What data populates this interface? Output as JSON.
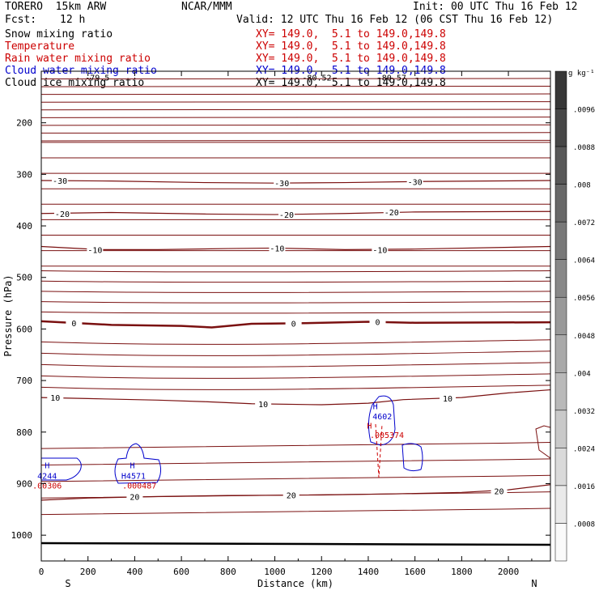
{
  "header": {
    "model": "TORERO  15km ARW",
    "org": "NCAR/MMM",
    "init": "Init: 00 UTC Thu 16 Feb 12",
    "fcst_label": "Fcst:",
    "fcst_value": "12 h",
    "valid": "Valid: 12 UTC Thu 16 Feb 12 (06 CST Thu 16 Feb 12)"
  },
  "fields": [
    {
      "name": "Snow mixing ratio",
      "xy": "XY= 149.0,  5.1 to 149.0,149.8",
      "color": "#000000"
    },
    {
      "name": "Temperature",
      "xy": "XY= 149.0,  5.1 to 149.0,149.8",
      "color": "#cc0000"
    },
    {
      "name": "Rain water mixing ratio",
      "xy": "XY= 149.0,  5.1 to 149.0,149.8",
      "color": "#cc0000"
    },
    {
      "name": "Cloud water mixing ratio",
      "xy": "XY= 149.0,  5.1 to 149.0,149.8",
      "color": "#0000cc"
    },
    {
      "name": "Cloud ice mixing ratio",
      "xy": "XY= 149.0,  5.1 to 149.0,149.8",
      "color": "#000000"
    }
  ],
  "chart_data": {
    "type": "contour",
    "xlabel": "Distance (km)",
    "ylabel": "Pressure (hPa)",
    "xlim": [
      0,
      2180
    ],
    "ylim": [
      1050,
      100
    ],
    "x_ticks": [
      0,
      200,
      400,
      600,
      800,
      1000,
      1200,
      1400,
      1600,
      1800,
      2000
    ],
    "y_ticks": [
      200,
      300,
      400,
      500,
      600,
      700,
      800,
      900,
      1000
    ],
    "x_end_labels": {
      "left": "S",
      "right": "N"
    },
    "temperature_contours": [
      {
        "level": -30,
        "label": "-30",
        "points": [
          [
            0,
            312
          ],
          [
            300,
            313
          ],
          [
            700,
            316
          ],
          [
            1000,
            317
          ],
          [
            1300,
            316
          ],
          [
            1600,
            314
          ],
          [
            2180,
            312
          ]
        ]
      },
      {
        "level": -20,
        "label": "-20",
        "points": [
          [
            0,
            376
          ],
          [
            300,
            374
          ],
          [
            700,
            377
          ],
          [
            1000,
            378
          ],
          [
            1300,
            376
          ],
          [
            1600,
            373
          ],
          [
            2180,
            372
          ]
        ]
      },
      {
        "level": -10,
        "label": "-10",
        "points": [
          [
            0,
            440
          ],
          [
            250,
            446
          ],
          [
            500,
            446
          ],
          [
            800,
            444
          ],
          [
            1000,
            443
          ],
          [
            1300,
            446
          ],
          [
            1600,
            445
          ],
          [
            2180,
            440
          ]
        ]
      },
      {
        "level": 0,
        "label": "0",
        "bold": true,
        "points": [
          [
            0,
            585
          ],
          [
            300,
            592
          ],
          [
            600,
            594
          ],
          [
            730,
            597
          ],
          [
            900,
            590
          ],
          [
            1100,
            589
          ],
          [
            1400,
            586
          ],
          [
            1600,
            588
          ],
          [
            2180,
            587
          ]
        ]
      },
      {
        "level": 10,
        "label": "10",
        "points": [
          [
            0,
            733
          ],
          [
            200,
            735
          ],
          [
            500,
            738
          ],
          [
            700,
            741
          ],
          [
            900,
            745
          ],
          [
            1200,
            747
          ],
          [
            1400,
            744
          ],
          [
            1550,
            737
          ],
          [
            1800,
            733
          ],
          [
            2000,
            724
          ],
          [
            2180,
            718
          ]
        ]
      },
      {
        "level": 20,
        "label": "20",
        "points": [
          [
            0,
            932
          ],
          [
            200,
            928
          ],
          [
            500,
            925
          ],
          [
            800,
            923
          ],
          [
            1200,
            922
          ],
          [
            1500,
            920
          ],
          [
            1800,
            917
          ],
          [
            2000,
            912
          ],
          [
            2180,
            902
          ]
        ]
      }
    ],
    "temperature_labels": [
      {
        "text": "-30",
        "x": 80,
        "p": 312
      },
      {
        "text": "-30",
        "x": 1030,
        "p": 317
      },
      {
        "text": "-30",
        "x": 1600,
        "p": 314
      },
      {
        "text": "-20",
        "x": 90,
        "p": 376
      },
      {
        "text": "-20",
        "x": 1050,
        "p": 378
      },
      {
        "text": "-20",
        "x": 1500,
        "p": 373
      },
      {
        "text": "-10",
        "x": 230,
        "p": 446
      },
      {
        "text": "-10",
        "x": 1010,
        "p": 443
      },
      {
        "text": "-10",
        "x": 1450,
        "p": 446
      },
      {
        "text": "0",
        "x": 140,
        "p": 588
      },
      {
        "text": "0",
        "x": 1080,
        "p": 589
      },
      {
        "text": "0",
        "x": 1440,
        "p": 586
      },
      {
        "text": "10",
        "x": 60,
        "p": 733
      },
      {
        "text": "10",
        "x": 950,
        "p": 745
      },
      {
        "text": "10",
        "x": 1740,
        "p": 734
      },
      {
        "text": "20",
        "x": 400,
        "p": 925
      },
      {
        "text": "20",
        "x": 1070,
        "p": 922
      },
      {
        "text": "20",
        "x": 1960,
        "p": 914
      }
    ],
    "annotations": [
      {
        "text": "-79.5",
        "x": 240,
        "p": 112,
        "color": "#000000"
      },
      {
        "text": "-80.52",
        "x": 1180,
        "p": 112,
        "color": "#000000"
      },
      {
        "text": "-80.57",
        "x": 1500,
        "p": 112,
        "color": "#000000"
      },
      {
        "text": "H",
        "x": 25,
        "p": 864,
        "color": "#0000cc"
      },
      {
        "text": "4244",
        "x": 25,
        "p": 884,
        "color": "#0000cc"
      },
      {
        "text": ".00306",
        "x": 25,
        "p": 903,
        "color": "#cc0000"
      },
      {
        "text": "H",
        "x": 390,
        "p": 864,
        "color": "#0000cc"
      },
      {
        "text": "H4571",
        "x": 395,
        "p": 884,
        "color": "#0000cc"
      },
      {
        "text": ".000487",
        "x": 420,
        "p": 903,
        "color": "#cc0000"
      },
      {
        "text": "H",
        "x": 1430,
        "p": 749,
        "color": "#0000cc"
      },
      {
        "text": "4602",
        "x": 1460,
        "p": 769,
        "color": "#0000cc"
      },
      {
        "text": "H",
        "x": 1405,
        "p": 787,
        "color": "#cc0000"
      },
      {
        "text": ".005374",
        "x": 1480,
        "p": 805,
        "color": "#cc0000"
      }
    ],
    "colorbar": {
      "units": "g kg⁻¹",
      "labels": [
        ".0096",
        ".0088",
        ".008",
        ".0072",
        ".0064",
        ".0056",
        ".0048",
        ".004",
        ".0032",
        ".0024",
        ".0016",
        ".0008"
      ]
    }
  }
}
